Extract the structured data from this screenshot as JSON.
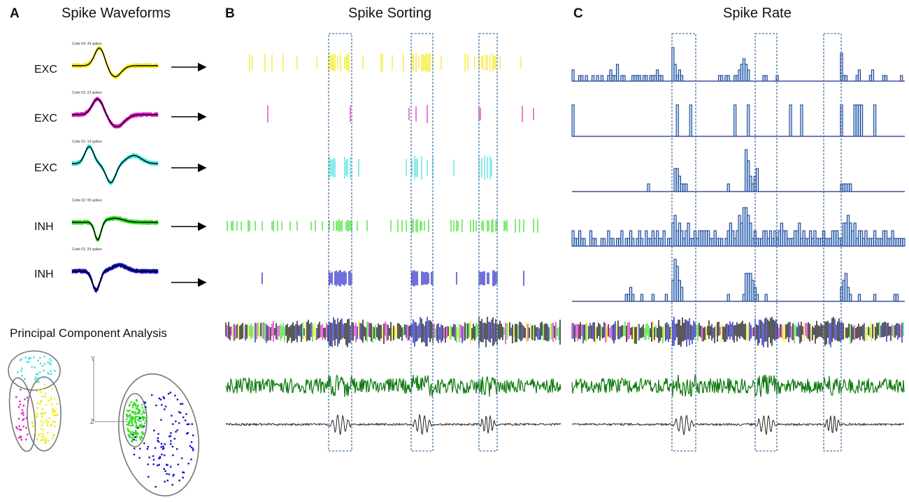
{
  "panels": {
    "a": {
      "letter": "A",
      "title": "Spike Waveforms"
    },
    "b": {
      "letter": "B",
      "title": "Spike Sorting"
    },
    "c": {
      "letter": "C",
      "title": "Spike Rate"
    }
  },
  "units": [
    {
      "label": "EXC",
      "caption": "Code 04: 39 spikes",
      "color": "#f2e90f"
    },
    {
      "label": "EXC",
      "caption": "Code 03: 23 spikes",
      "color": "#e020c8"
    },
    {
      "label": "EXC",
      "caption": "Code 02: 14 spikes",
      "color": "#3fe0e0"
    },
    {
      "label": "INH",
      "caption": "Code 02: 99 spikes",
      "color": "#33dd22"
    },
    {
      "label": "INH",
      "caption": "Code 01: 29 spikes",
      "color": "#1010c0"
    }
  ],
  "pca": {
    "title": "Principal Component Analysis",
    "axis_y": "Y",
    "axis_z": "Z"
  },
  "colors": {
    "box": "#4a7aa8",
    "bar_fill": "#bde3f7",
    "bar_edge": "#1a2e8a",
    "raw_trace": "#0f7a10",
    "lfp_trace": "#222222",
    "text": "#111111"
  },
  "chart_data": {
    "type": "bar",
    "title": "Spike Rate",
    "series": [
      {
        "name": "EXC 1",
        "values": [
          2,
          0,
          0,
          1,
          1,
          0,
          1,
          0,
          0,
          1,
          0,
          1,
          0,
          1,
          0,
          0,
          1,
          2,
          1,
          1,
          3,
          0,
          1,
          1,
          0,
          0,
          0,
          1,
          1,
          1,
          1,
          0,
          1,
          1,
          0,
          1,
          1,
          1,
          2,
          1,
          1,
          0,
          0,
          0,
          0,
          6,
          3,
          1,
          2,
          1,
          0,
          0,
          0,
          0,
          0,
          0,
          0,
          0,
          0,
          0,
          0,
          0,
          0,
          0,
          0,
          0,
          1,
          1,
          0,
          1,
          1,
          0,
          0,
          1,
          1,
          2,
          3,
          4,
          3,
          2,
          0,
          0,
          0,
          0,
          0,
          0,
          1,
          1,
          0,
          0,
          0,
          0,
          1,
          0,
          0,
          0,
          0,
          0,
          0,
          0,
          0,
          0,
          0,
          0,
          0,
          0,
          0,
          0,
          0,
          0,
          0,
          0,
          0,
          0,
          0,
          0,
          0,
          0,
          0,
          0,
          0,
          5,
          1,
          1,
          0,
          0,
          0,
          0,
          1,
          2,
          0,
          0,
          0,
          0,
          1,
          2,
          0,
          0,
          0,
          0,
          1,
          1,
          0,
          0,
          0,
          0,
          0,
          0,
          1,
          0
        ]
      },
      {
        "name": "EXC 2",
        "values": [
          1,
          0,
          0,
          0,
          0,
          0,
          0,
          0,
          0,
          0,
          0,
          0,
          0,
          0,
          0,
          0,
          0,
          0,
          0,
          0,
          0,
          0,
          0,
          0,
          0,
          0,
          0,
          0,
          0,
          0,
          0,
          0,
          0,
          0,
          0,
          0,
          0,
          0,
          0,
          0,
          0,
          0,
          0,
          0,
          0,
          0,
          0,
          1,
          0,
          0,
          0,
          0,
          0,
          1,
          0,
          0,
          0,
          0,
          0,
          0,
          0,
          0,
          0,
          0,
          0,
          0,
          0,
          0,
          0,
          0,
          0,
          0,
          0,
          1,
          0,
          0,
          0,
          0,
          0,
          1,
          0,
          0,
          0,
          0,
          0,
          0,
          0,
          0,
          0,
          0,
          0,
          0,
          0,
          0,
          0,
          0,
          0,
          0,
          1,
          0,
          0,
          0,
          0,
          1,
          0,
          0,
          0,
          0,
          0,
          0,
          0,
          0,
          0,
          0,
          0,
          0,
          0,
          0,
          0,
          0,
          0,
          1,
          0,
          0,
          0,
          0,
          0,
          1,
          1,
          1,
          1,
          0,
          0,
          0,
          0,
          0,
          1,
          0,
          0,
          0,
          0,
          0,
          0,
          0,
          0,
          0,
          0,
          0,
          0,
          0
        ]
      },
      {
        "name": "EXC 3",
        "values": [
          0,
          0,
          0,
          0,
          0,
          0,
          0,
          0,
          0,
          0,
          0,
          0,
          0,
          0,
          0,
          0,
          0,
          0,
          0,
          0,
          0,
          0,
          0,
          0,
          0,
          0,
          0,
          0,
          0,
          0,
          0,
          0,
          0,
          0,
          1,
          0,
          0,
          0,
          0,
          0,
          0,
          0,
          0,
          0,
          0,
          0,
          3,
          3,
          2,
          1,
          1,
          1,
          0,
          0,
          0,
          0,
          0,
          0,
          0,
          0,
          0,
          0,
          0,
          0,
          0,
          0,
          0,
          0,
          0,
          0,
          1,
          0,
          0,
          0,
          0,
          0,
          0,
          0,
          6,
          4,
          2,
          1,
          2,
          3,
          0,
          0,
          0,
          0,
          0,
          0,
          0,
          0,
          0,
          0,
          0,
          0,
          0,
          0,
          0,
          0,
          0,
          0,
          0,
          0,
          0,
          0,
          0,
          0,
          0,
          0,
          0,
          0,
          0,
          0,
          0,
          0,
          0,
          0,
          0,
          0,
          0,
          1,
          1,
          1,
          1,
          1,
          0,
          0,
          0,
          0,
          0,
          0,
          0,
          0,
          0,
          0,
          0,
          0,
          0,
          0,
          0,
          0,
          0,
          0,
          0,
          0,
          0,
          0,
          0,
          0
        ]
      },
      {
        "name": "INH 1",
        "values": [
          2,
          1,
          1,
          2,
          1,
          1,
          0,
          0,
          2,
          1,
          1,
          0,
          0,
          1,
          1,
          0,
          2,
          1,
          1,
          0,
          1,
          1,
          2,
          0,
          1,
          1,
          2,
          1,
          0,
          1,
          2,
          1,
          0,
          2,
          1,
          1,
          2,
          1,
          2,
          1,
          1,
          2,
          0,
          1,
          1,
          3,
          4,
          2,
          3,
          2,
          1,
          2,
          3,
          1,
          1,
          2,
          1,
          2,
          2,
          2,
          2,
          2,
          1,
          1,
          2,
          1,
          1,
          1,
          0,
          1,
          2,
          3,
          2,
          1,
          2,
          4,
          3,
          5,
          5,
          4,
          3,
          1,
          2,
          1,
          1,
          1,
          2,
          2,
          1,
          2,
          1,
          2,
          1,
          2,
          3,
          2,
          2,
          1,
          1,
          1,
          2,
          2,
          3,
          1,
          2,
          1,
          1,
          2,
          1,
          2,
          1,
          1,
          1,
          2,
          1,
          1,
          1,
          2,
          2,
          2,
          1,
          1,
          3,
          3,
          4,
          3,
          2,
          3,
          1,
          2,
          2,
          1,
          2,
          1,
          1,
          1,
          2,
          1,
          1,
          1,
          2,
          2,
          1,
          1,
          2,
          1,
          1,
          1,
          1,
          1
        ]
      },
      {
        "name": "INH 2",
        "values": [
          0,
          0,
          0,
          0,
          0,
          0,
          0,
          0,
          0,
          0,
          0,
          0,
          0,
          0,
          0,
          0,
          0,
          0,
          0,
          0,
          0,
          0,
          0,
          0,
          1,
          1,
          2,
          1,
          0,
          0,
          0,
          1,
          0,
          0,
          0,
          0,
          1,
          0,
          0,
          0,
          0,
          0,
          1,
          0,
          0,
          3,
          6,
          5,
          3,
          2,
          0,
          0,
          0,
          0,
          0,
          0,
          0,
          0,
          0,
          0,
          0,
          0,
          0,
          0,
          0,
          0,
          0,
          0,
          0,
          0,
          1,
          0,
          0,
          0,
          0,
          0,
          0,
          1,
          4,
          4,
          4,
          3,
          2,
          1,
          0,
          0,
          0,
          1,
          0,
          0,
          0,
          0,
          0,
          0,
          0,
          0,
          0,
          0,
          0,
          0,
          0,
          0,
          0,
          0,
          0,
          0,
          0,
          0,
          0,
          0,
          0,
          0,
          0,
          0,
          0,
          0,
          0,
          0,
          0,
          0,
          0,
          2,
          3,
          4,
          2,
          1,
          0,
          0,
          0,
          1,
          0,
          0,
          0,
          0,
          0,
          0,
          1,
          0,
          0,
          0,
          0,
          0,
          0,
          0,
          0,
          1,
          1,
          0,
          0,
          0
        ]
      }
    ]
  }
}
